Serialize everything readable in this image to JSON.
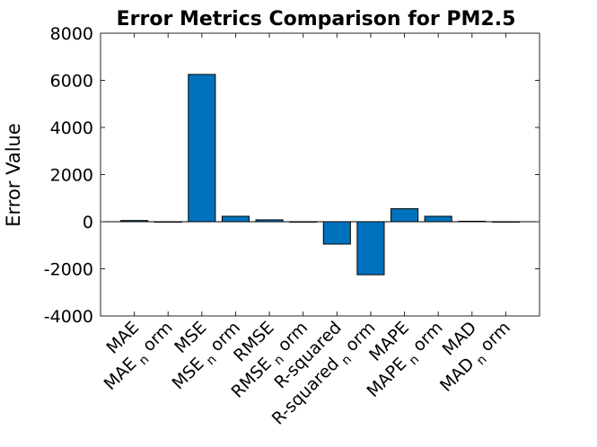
{
  "chart_data": {
    "type": "bar",
    "title": "Error Metrics Comparison for PM2.5",
    "xlabel": "",
    "ylabel": "Error Value",
    "ylim": [
      -4000,
      8000
    ],
    "yticks": [
      -4000,
      -2000,
      0,
      2000,
      4000,
      6000,
      8000
    ],
    "ytick_labels": [
      "-4000",
      "-2000",
      "0",
      "2000",
      "4000",
      "6000",
      "8000"
    ],
    "categories": [
      {
        "base": "MAE",
        "sub": ""
      },
      {
        "base": "MAE",
        "sub": "n",
        "tail": "orm"
      },
      {
        "base": "MSE",
        "sub": ""
      },
      {
        "base": "MSE",
        "sub": "n",
        "tail": "orm"
      },
      {
        "base": "RMSE",
        "sub": ""
      },
      {
        "base": "RMSE",
        "sub": "n",
        "tail": "orm"
      },
      {
        "base": "R-squared",
        "sub": ""
      },
      {
        "base": "R-squared",
        "sub": "n",
        "tail": "orm"
      },
      {
        "base": "MAPE",
        "sub": ""
      },
      {
        "base": "MAPE",
        "sub": "n",
        "tail": "orm"
      },
      {
        "base": "MAD",
        "sub": ""
      },
      {
        "base": "MAD",
        "sub": "n",
        "tail": "orm"
      }
    ],
    "values": [
      50,
      0,
      6250,
      230,
      80,
      0,
      -950,
      -2250,
      550,
      230,
      20,
      0
    ],
    "bar_color": "#0072BD",
    "grid": false,
    "legend": "none"
  }
}
